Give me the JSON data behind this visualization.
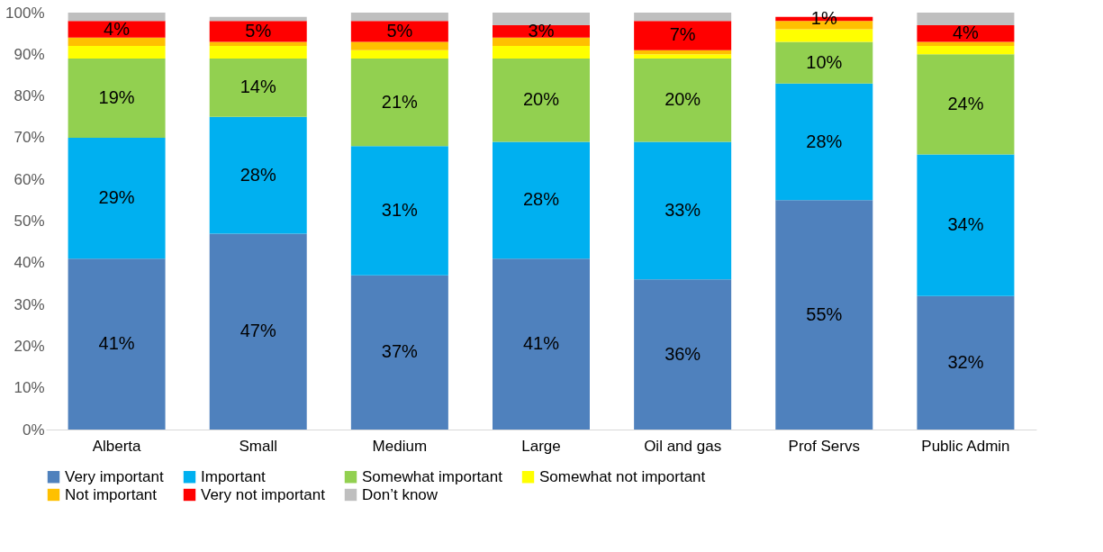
{
  "chart_data": {
    "type": "bar",
    "stacked": true,
    "categories": [
      "Alberta",
      "Small",
      "Medium",
      "Large",
      "Oil and gas",
      "Prof Servs",
      "Public Admin"
    ],
    "series": [
      {
        "name": "Very important",
        "color": "#4f81bd",
        "values": [
          41,
          47,
          37,
          41,
          36,
          55,
          32
        ],
        "value_labels": [
          "41%",
          "47%",
          "37%",
          "41%",
          "36%",
          "55%",
          "32%"
        ]
      },
      {
        "name": "Important",
        "color": "#00b0f0",
        "values": [
          29,
          28,
          31,
          28,
          33,
          28,
          34
        ],
        "value_labels": [
          "29%",
          "28%",
          "31%",
          "28%",
          "33%",
          "28%",
          "34%"
        ]
      },
      {
        "name": "Somewhat important",
        "color": "#92d050",
        "values": [
          19,
          14,
          21,
          20,
          20,
          10,
          24
        ],
        "value_labels": [
          "19%",
          "14%",
          "21%",
          "20%",
          "20%",
          "10%",
          "24%"
        ]
      },
      {
        "name": "Somewhat not important",
        "color": "#ffff00",
        "values": [
          3,
          3,
          2,
          3,
          1,
          3,
          2
        ]
      },
      {
        "name": "Not important",
        "color": "#ffc000",
        "values": [
          2,
          1,
          2,
          2,
          1,
          2,
          1
        ]
      },
      {
        "name": "Very not important",
        "color": "#ff0000",
        "values": [
          4,
          5,
          5,
          3,
          7,
          1,
          4
        ],
        "value_labels": [
          "4%",
          "5%",
          "5%",
          "3%",
          "7%",
          "1%",
          "4%"
        ]
      },
      {
        "name": "Don’t know",
        "color": "#bfbfbf",
        "values": [
          2,
          1,
          2,
          3,
          2,
          0,
          3
        ]
      }
    ],
    "ylim": [
      0,
      100
    ],
    "yticks": [
      {
        "value": 0,
        "label": "0%"
      },
      {
        "value": 10,
        "label": "10%"
      },
      {
        "value": 20,
        "label": "20%"
      },
      {
        "value": 30,
        "label": "30%"
      },
      {
        "value": 40,
        "label": "40%"
      },
      {
        "value": 50,
        "label": "50%"
      },
      {
        "value": 60,
        "label": "60%"
      },
      {
        "value": 70,
        "label": "70%"
      },
      {
        "value": 80,
        "label": "80%"
      },
      {
        "value": 90,
        "label": "90%"
      },
      {
        "value": 100,
        "label": "100%"
      }
    ],
    "grid": false,
    "legend": "bottom"
  }
}
